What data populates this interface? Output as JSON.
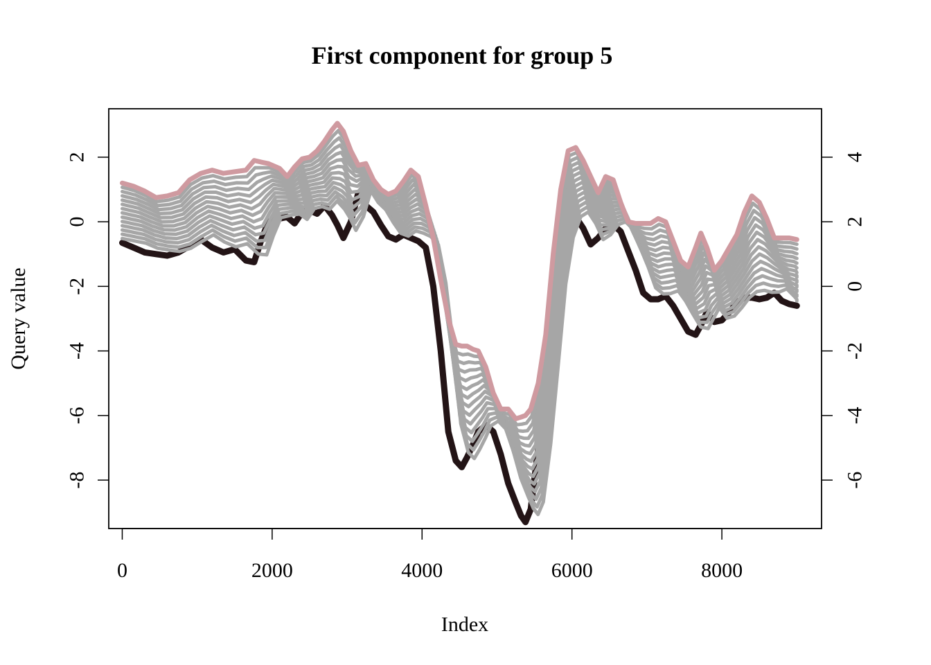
{
  "chart_data": {
    "type": "line",
    "title": "First component for group 5",
    "xlabel": "Index",
    "ylabel": "Query value",
    "xlim": [
      -180,
      9330
    ],
    "ylim": [
      -9.5,
      3.5
    ],
    "x_ticks": [
      0,
      2000,
      4000,
      6000,
      8000
    ],
    "y_ticks": [
      -8,
      -6,
      -4,
      -2,
      0,
      2
    ],
    "y2_ticks": [
      -6,
      -4,
      -2,
      0,
      2,
      4
    ],
    "y2_offset": -2,
    "grid": false,
    "colors": {
      "reference": "#231416",
      "query": "#cf9aa0",
      "intermediate": "#a6a6a6"
    },
    "n_intermediate": 13,
    "series": [
      {
        "role": "reference",
        "x": [
          0,
          150,
          300,
          450,
          600,
          750,
          900,
          1050,
          1200,
          1350,
          1500,
          1650,
          1760,
          1850,
          1950,
          2100,
          2200,
          2300,
          2400,
          2500,
          2600,
          2700,
          2800,
          2870,
          2950,
          3050,
          3150,
          3250,
          3350,
          3450,
          3550,
          3650,
          3750,
          3850,
          3950,
          4050,
          4150,
          4250,
          4350,
          4450,
          4530,
          4600,
          4680,
          4750,
          4850,
          4950,
          5050,
          5150,
          5250,
          5320,
          5380,
          5450,
          5550,
          5650,
          5750,
          5850,
          5950,
          6050,
          6150,
          6250,
          6350,
          6450,
          6550,
          6650,
          6750,
          6850,
          6950,
          7050,
          7150,
          7250,
          7350,
          7450,
          7550,
          7650,
          7720,
          7800,
          7900,
          8000,
          8100,
          8200,
          8300,
          8400,
          8500,
          8600,
          8700,
          8800,
          8900,
          9000
        ],
        "y": [
          -0.65,
          -0.8,
          -0.95,
          -1.0,
          -1.05,
          -0.95,
          -0.75,
          -0.55,
          -0.8,
          -0.95,
          -0.85,
          -1.2,
          -1.25,
          -0.6,
          0.0,
          0.1,
          0.15,
          -0.05,
          0.3,
          0.35,
          0.25,
          0.5,
          0.2,
          -0.1,
          -0.5,
          0.0,
          0.9,
          0.5,
          0.3,
          -0.1,
          -0.45,
          -0.55,
          -0.4,
          -0.5,
          -0.6,
          -0.8,
          -2.0,
          -4.0,
          -6.5,
          -7.4,
          -7.6,
          -7.3,
          -6.9,
          -6.5,
          -6.3,
          -6.5,
          -7.2,
          -8.1,
          -8.7,
          -9.1,
          -9.3,
          -8.9,
          -7.0,
          -4.5,
          -2.0,
          -0.6,
          0.0,
          0.15,
          -0.2,
          -0.7,
          -0.5,
          -0.2,
          -0.1,
          -0.3,
          -0.9,
          -1.5,
          -2.2,
          -2.4,
          -2.4,
          -2.3,
          -2.6,
          -3.0,
          -3.4,
          -3.5,
          -3.2,
          -2.8,
          -3.1,
          -3.05,
          -2.8,
          -2.5,
          -2.35,
          -2.35,
          -2.4,
          -2.35,
          -2.2,
          -2.45,
          -2.55,
          -2.6
        ]
      },
      {
        "role": "query",
        "x": [
          0,
          150,
          300,
          450,
          600,
          750,
          900,
          1050,
          1200,
          1350,
          1500,
          1650,
          1760,
          1850,
          1950,
          2100,
          2200,
          2300,
          2400,
          2500,
          2600,
          2700,
          2800,
          2870,
          2950,
          3050,
          3150,
          3250,
          3350,
          3450,
          3550,
          3650,
          3750,
          3850,
          3950,
          4050,
          4150,
          4250,
          4350,
          4450,
          4530,
          4600,
          4680,
          4750,
          4850,
          4950,
          5050,
          5150,
          5250,
          5320,
          5380,
          5450,
          5550,
          5650,
          5750,
          5850,
          5950,
          6050,
          6150,
          6250,
          6350,
          6450,
          6550,
          6650,
          6750,
          6850,
          6950,
          7050,
          7150,
          7250,
          7350,
          7450,
          7550,
          7650,
          7720,
          7800,
          7900,
          8000,
          8100,
          8200,
          8300,
          8400,
          8500,
          8600,
          8700,
          8800,
          8900,
          9000
        ],
        "y": [
          1.2,
          1.1,
          0.95,
          0.75,
          0.8,
          0.9,
          1.3,
          1.5,
          1.6,
          1.5,
          1.55,
          1.6,
          1.9,
          1.85,
          1.8,
          1.65,
          1.4,
          1.7,
          1.95,
          2.0,
          2.2,
          2.5,
          2.85,
          3.05,
          2.8,
          2.2,
          1.75,
          1.8,
          1.3,
          1.0,
          0.85,
          0.95,
          1.25,
          1.6,
          1.4,
          0.5,
          -0.5,
          -1.8,
          -3.0,
          -3.8,
          -3.85,
          -3.85,
          -3.95,
          -4.0,
          -4.5,
          -5.3,
          -5.8,
          -5.8,
          -6.1,
          -6.05,
          -6.0,
          -5.8,
          -5.0,
          -3.5,
          -1.0,
          1.0,
          2.2,
          2.3,
          1.9,
          1.4,
          0.9,
          1.4,
          1.3,
          0.6,
          0.0,
          -0.05,
          -0.05,
          -0.05,
          0.1,
          0.0,
          -0.6,
          -1.2,
          -1.4,
          -0.8,
          -0.35,
          -0.8,
          -1.5,
          -1.2,
          -0.8,
          -0.4,
          0.3,
          0.8,
          0.6,
          0.1,
          -0.5,
          -0.5,
          -0.5,
          -0.55
        ]
      }
    ]
  }
}
